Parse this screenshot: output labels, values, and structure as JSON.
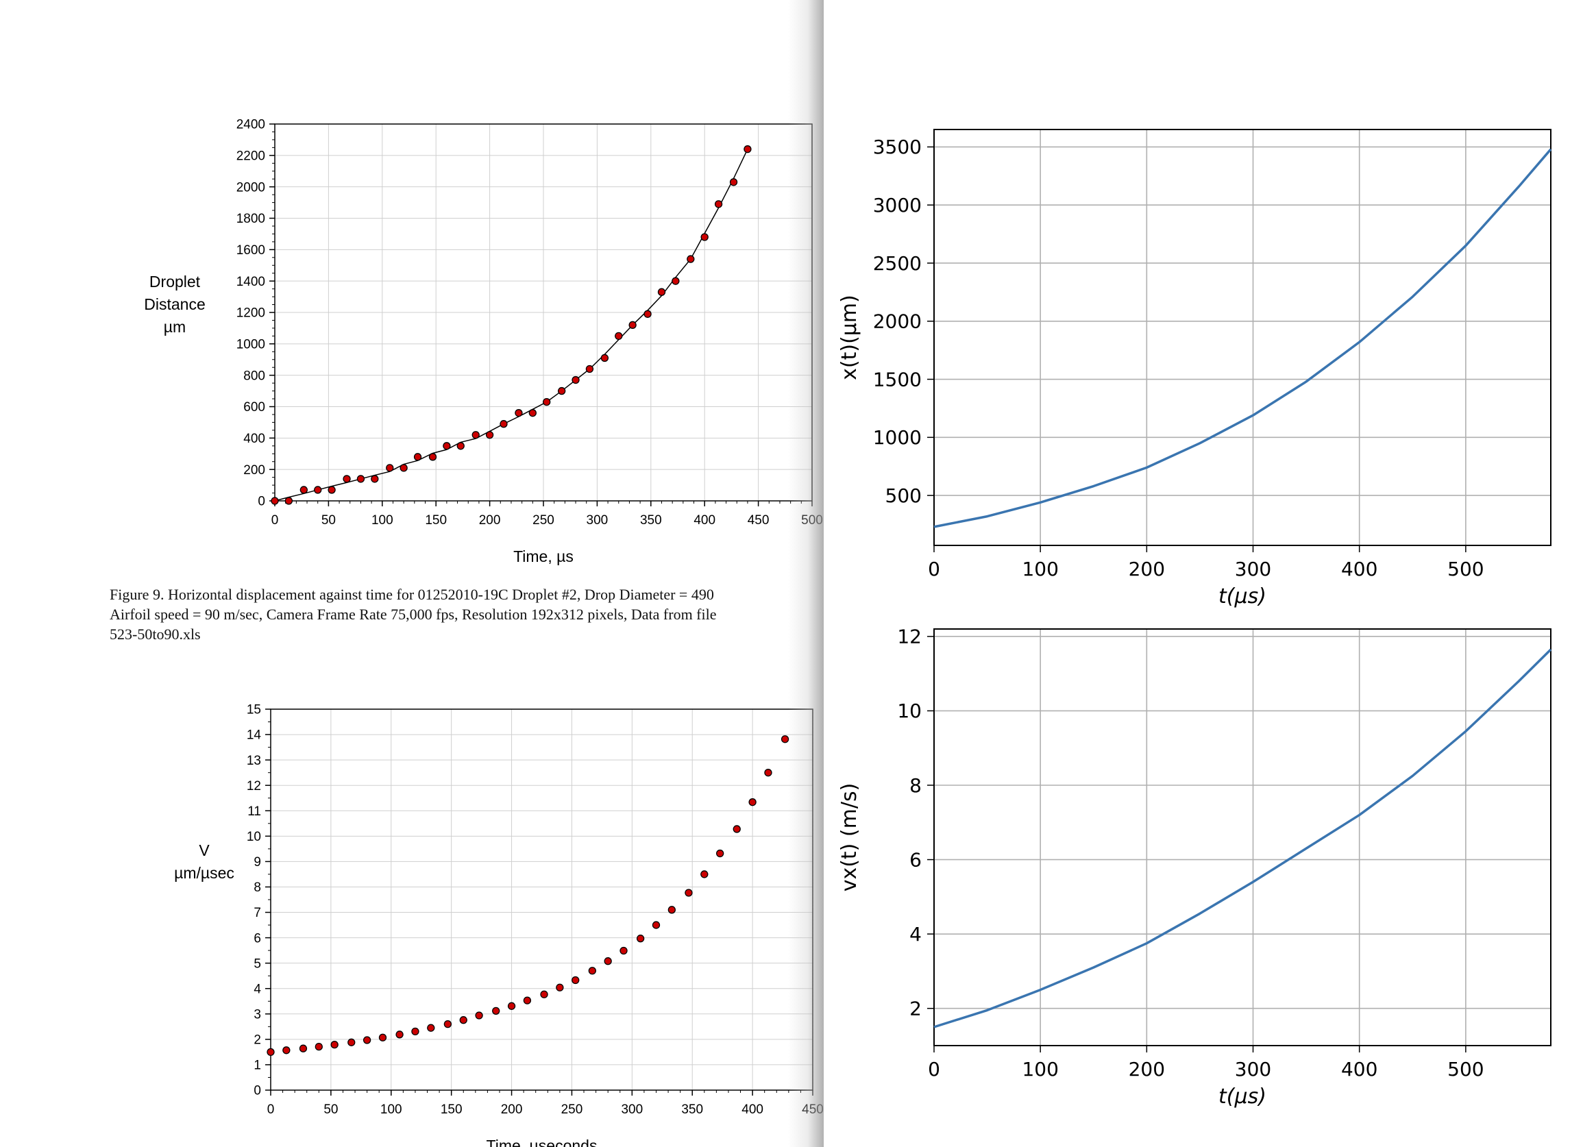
{
  "caption": {
    "line1": "Figure 9. Horizontal displacement against time for  01252010-19C Droplet #2, Drop Diameter = 490",
    "line2": "Airfoil speed = 90 m/sec, Camera Frame Rate 75,000 fps, Resolution 192x312 pixels, Data from  file",
    "line3": "523-50to90.xls"
  },
  "chart_data": [
    {
      "id": "left-top",
      "type": "scatter",
      "ylabel_lines": [
        "Droplet",
        "Distance",
        "µm"
      ],
      "xlabel": "Time, µs",
      "xlim": [
        0,
        500
      ],
      "ylim": [
        0,
        2400
      ],
      "xticks": [
        0,
        50,
        100,
        150,
        200,
        250,
        300,
        350,
        400,
        450,
        500
      ],
      "yticks": [
        0,
        200,
        400,
        600,
        800,
        1000,
        1200,
        1400,
        1600,
        1800,
        2000,
        2200,
        2400
      ],
      "grid": true,
      "marker_color": "#cc0000",
      "fit_line": true,
      "series": [
        {
          "x": [
            0,
            13,
            27,
            40,
            53,
            67,
            80,
            93,
            107,
            120,
            133,
            147,
            160,
            173,
            187,
            200,
            213,
            227,
            240,
            253,
            267,
            280,
            293,
            307,
            320,
            333,
            347,
            360,
            373,
            387,
            400,
            413,
            427,
            440
          ],
          "y": [
            0,
            0,
            70,
            70,
            70,
            140,
            140,
            140,
            210,
            210,
            280,
            280,
            350,
            350,
            420,
            420,
            490,
            560,
            560,
            630,
            700,
            770,
            840,
            910,
            1050,
            1120,
            1190,
            1330,
            1400,
            1540,
            1680,
            1890,
            2030,
            2240
          ]
        }
      ]
    },
    {
      "id": "left-bottom",
      "type": "scatter",
      "ylabel_lines": [
        "V",
        "µm/µsec"
      ],
      "xlabel": "Time,  µseconds",
      "xlim": [
        0,
        450
      ],
      "ylim": [
        0,
        15
      ],
      "xticks": [
        0,
        50,
        100,
        150,
        200,
        250,
        300,
        350,
        400,
        450
      ],
      "yticks": [
        0,
        1,
        2,
        3,
        4,
        5,
        6,
        7,
        8,
        9,
        10,
        11,
        12,
        13,
        14,
        15
      ],
      "grid": true,
      "marker_color": "#cc0000",
      "fit_line": false,
      "series": [
        {
          "x": [
            0,
            13,
            27,
            40,
            53,
            67,
            80,
            93,
            107,
            120,
            133,
            147,
            160,
            173,
            187,
            200,
            213,
            227,
            240,
            253,
            267,
            280,
            293,
            307,
            320,
            333,
            347,
            360,
            373,
            387,
            400,
            413,
            427
          ],
          "y": [
            1.5,
            1.57,
            1.64,
            1.71,
            1.79,
            1.88,
            1.97,
            2.07,
            2.19,
            2.31,
            2.45,
            2.6,
            2.76,
            2.94,
            3.12,
            3.31,
            3.53,
            3.77,
            4.04,
            4.33,
            4.7,
            5.08,
            5.49,
            5.97,
            6.5,
            7.1,
            7.77,
            8.5,
            9.32,
            10.28,
            11.34,
            12.5,
            13.82
          ]
        }
      ]
    },
    {
      "id": "right-top",
      "type": "line",
      "xlabel": "t(μs)",
      "ylabel": "x(t)(μm)",
      "xlim": [
        0,
        580
      ],
      "ylim": [
        70,
        3650
      ],
      "xticks": [
        0,
        100,
        200,
        300,
        400,
        500
      ],
      "yticks": [
        500,
        1000,
        1500,
        2000,
        2500,
        3000,
        3500
      ],
      "grid": true,
      "line_color": "#3a75b0",
      "series": [
        {
          "x": [
            0,
            50,
            100,
            150,
            200,
            250,
            300,
            350,
            400,
            450,
            500,
            550,
            580
          ],
          "y": [
            230,
            320,
            440,
            580,
            740,
            950,
            1190,
            1480,
            1820,
            2210,
            2650,
            3160,
            3480
          ]
        }
      ]
    },
    {
      "id": "right-bottom",
      "type": "line",
      "xlabel": "t(μs)",
      "ylabel": "vx(t) (m/s)",
      "xlim": [
        0,
        580
      ],
      "ylim": [
        1,
        12.2
      ],
      "xticks": [
        0,
        100,
        200,
        300,
        400,
        500
      ],
      "yticks": [
        2,
        4,
        6,
        8,
        10,
        12
      ],
      "grid": true,
      "line_color": "#3a75b0",
      "series": [
        {
          "x": [
            0,
            50,
            100,
            150,
            200,
            250,
            300,
            350,
            400,
            450,
            500,
            550,
            580
          ],
          "y": [
            1.5,
            1.95,
            2.5,
            3.1,
            3.75,
            4.55,
            5.4,
            6.3,
            7.2,
            8.25,
            9.45,
            10.8,
            11.65
          ]
        }
      ]
    }
  ]
}
